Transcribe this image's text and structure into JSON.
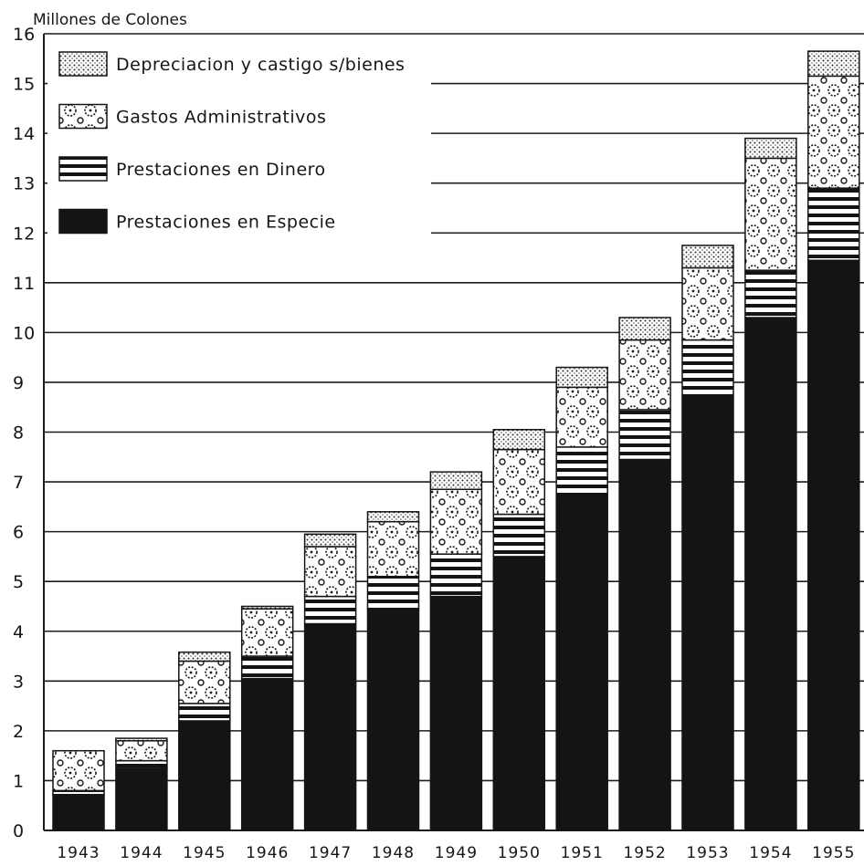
{
  "chart_data": {
    "type": "bar",
    "stacked": true,
    "title": "",
    "ylabel": "Millones de Colones",
    "xlabel": "",
    "ylim": [
      0,
      16
    ],
    "yticks": [
      0,
      1,
      2,
      3,
      4,
      5,
      6,
      7,
      8,
      9,
      10,
      11,
      12,
      13,
      14,
      15,
      16
    ],
    "grid": true,
    "legend_position": "top-left",
    "categories": [
      "1943",
      "1944",
      "1945",
      "1946",
      "1947",
      "1948",
      "1949",
      "1950",
      "1951",
      "1952",
      "1953",
      "1954",
      "1955"
    ],
    "series": [
      {
        "name": "Prestaciones en Especie",
        "pattern": "solid",
        "color": "#141414",
        "values": [
          0.72,
          1.25,
          2.2,
          3.05,
          4.15,
          4.45,
          4.7,
          5.5,
          6.7,
          7.45,
          8.7,
          10.3,
          11.45
        ]
      },
      {
        "name": "Prestaciones en Dinero",
        "pattern": "stripes",
        "color": "#141414",
        "values": [
          0.08,
          0.15,
          0.35,
          0.45,
          0.55,
          0.65,
          0.85,
          0.85,
          1.0,
          1.0,
          1.15,
          0.95,
          1.45
        ]
      },
      {
        "name": "Gastos Administrativos",
        "pattern": "circles",
        "color": "#141414",
        "values": [
          0.8,
          0.4,
          0.85,
          0.95,
          1.0,
          1.1,
          1.3,
          1.3,
          1.2,
          1.4,
          1.45,
          2.25,
          2.25
        ]
      },
      {
        "name": "Depreciacion y castigo s/bienes",
        "pattern": "dots",
        "color": "#141414",
        "values": [
          0.0,
          0.05,
          0.18,
          0.05,
          0.25,
          0.2,
          0.35,
          0.4,
          0.4,
          0.45,
          0.45,
          0.4,
          0.5
        ]
      }
    ],
    "legend_order": [
      "Depreciacion y castigo s/bienes",
      "Gastos Administrativos",
      "Prestaciones en Dinero",
      "Prestaciones en Especie"
    ]
  }
}
